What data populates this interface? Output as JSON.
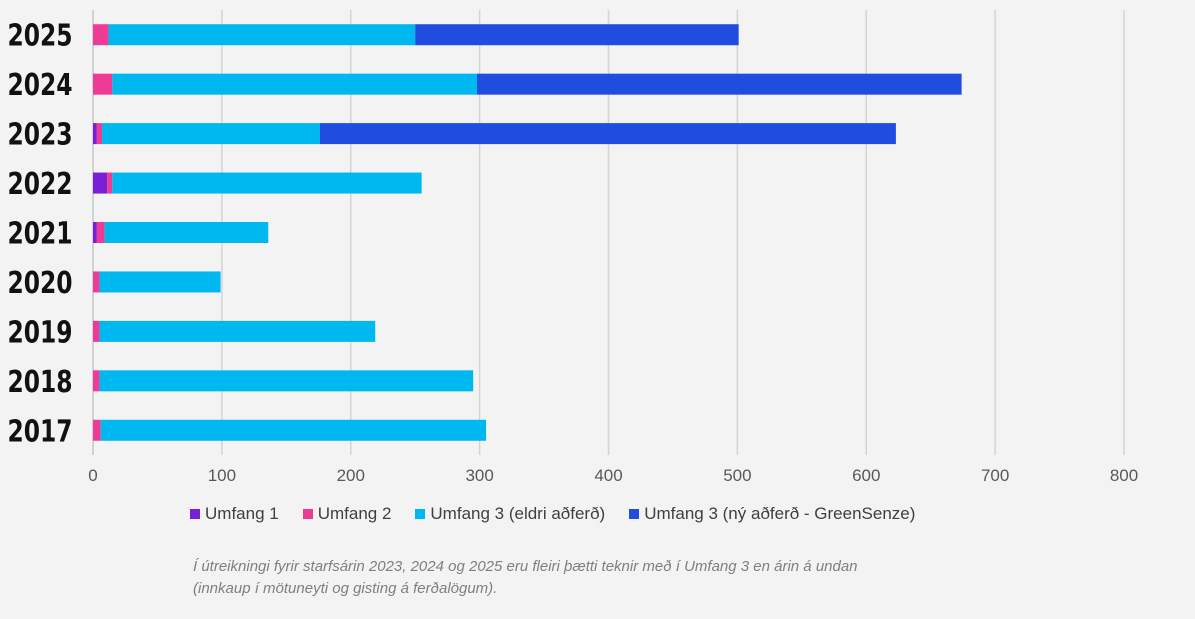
{
  "chart_data": {
    "type": "bar",
    "orientation": "horizontal",
    "stacked": true,
    "categories": [
      "2025",
      "2024",
      "2023",
      "2022",
      "2021",
      "2020",
      "2019",
      "2018",
      "2017"
    ],
    "series": [
      {
        "name": "Umfang 1",
        "color": "#7a1fd8",
        "values": [
          0,
          0,
          3,
          11,
          3,
          0,
          0,
          0,
          0
        ]
      },
      {
        "name": "Umfang 2",
        "color": "#ee3c96",
        "values": [
          12,
          15,
          4,
          4,
          6,
          5,
          5,
          5,
          6
        ]
      },
      {
        "name": "Umfang 3 (eldri aðferð)",
        "color": "#00b8f0",
        "values": [
          238,
          283,
          169,
          240,
          127,
          94,
          214,
          290,
          299
        ]
      },
      {
        "name": "Umfang 3 (ný aðferð - GreenSenze)",
        "color": "#1e4de0",
        "values": [
          251,
          376,
          447,
          0,
          0,
          0,
          0,
          0,
          0
        ]
      }
    ],
    "xlim": [
      0,
      800
    ],
    "xticks": [
      "0",
      "100",
      "200",
      "300",
      "400",
      "500",
      "600",
      "700",
      "800"
    ],
    "grid": true,
    "legend_position": "bottom",
    "title": "",
    "xlabel": "",
    "ylabel": ""
  },
  "footnote": "Í útreikningi fyrir starfsárin 2023, 2024 og 2025 eru fleiri þætti teknir með í Umfang 3 en árin á undan (innkaup í mötuneyti og gisting á ferðalögum).",
  "legend": [
    {
      "label": "Umfang 1",
      "color": "#7a1fd8"
    },
    {
      "label": "Umfang 2",
      "color": "#ee3c96"
    },
    {
      "label": "Umfang 3 (eldri aðferð)",
      "color": "#00b8f0"
    },
    {
      "label": "Umfang 3 (ný aðferð - GreenSenze)",
      "color": "#1e4de0"
    }
  ]
}
